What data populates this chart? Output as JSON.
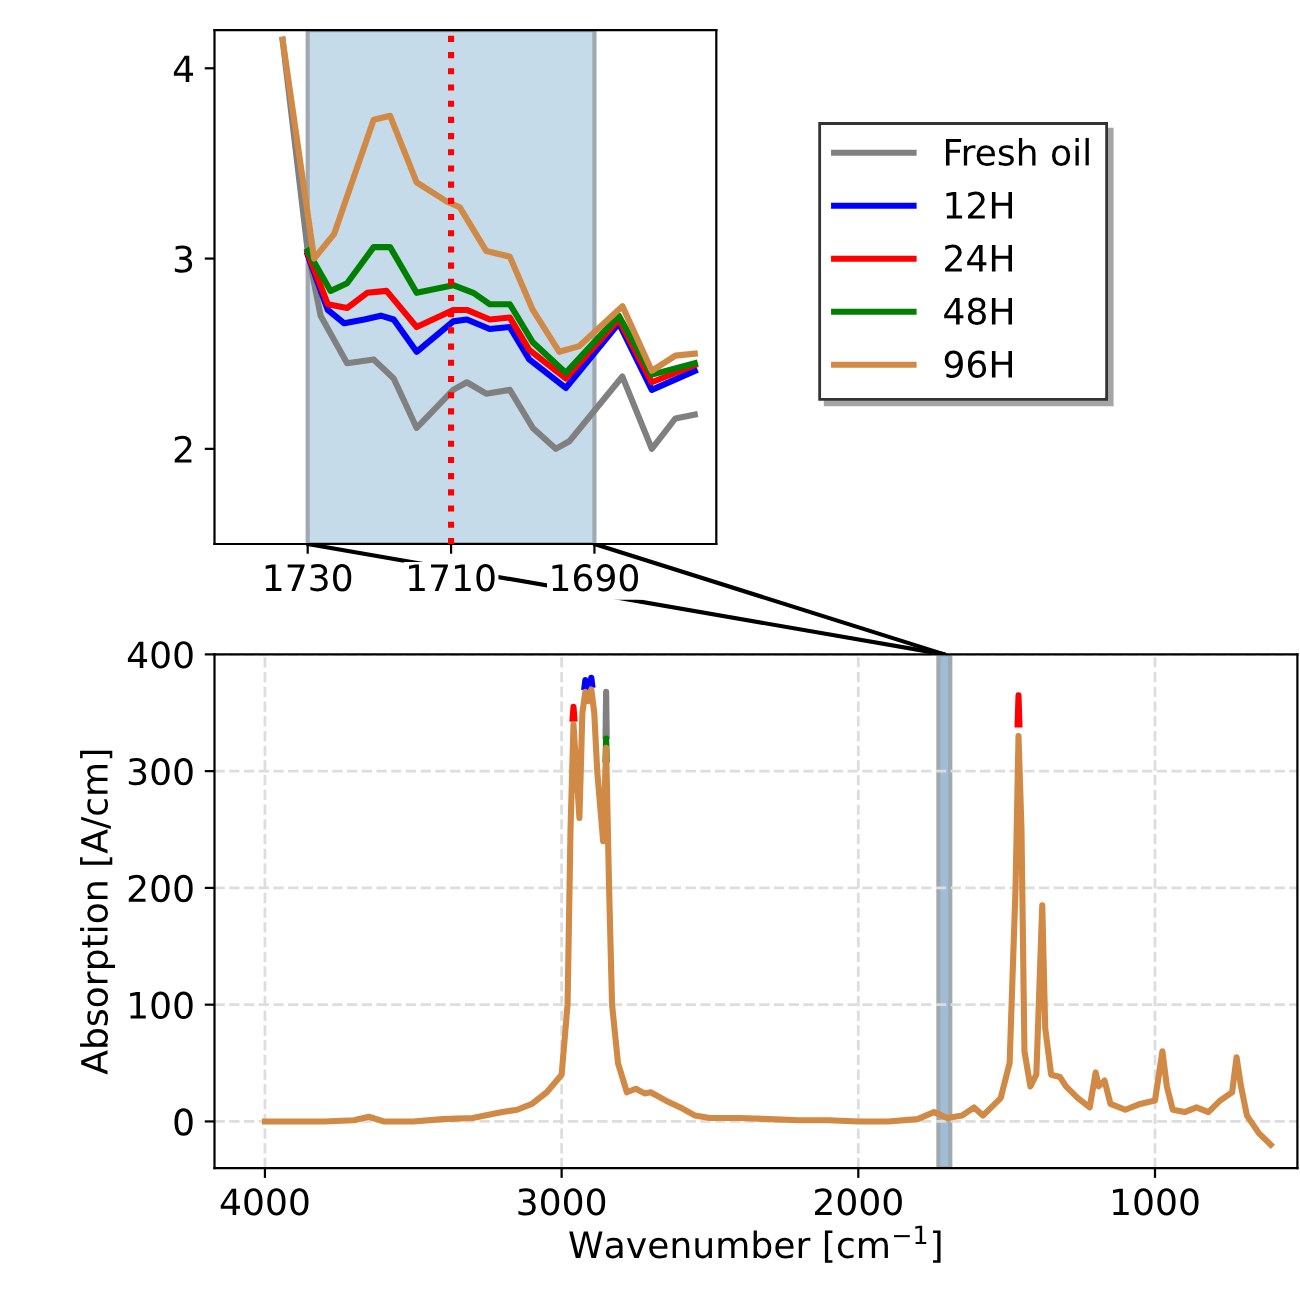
{
  "chart_data": [
    {
      "type": "line",
      "xlim": [
        1743,
        1673
      ],
      "ylim": [
        1.5,
        4.2
      ],
      "xticks": [
        1730,
        1710,
        1690
      ],
      "yticks": [
        2,
        3,
        4
      ],
      "legend": "right",
      "bands": [
        {
          "axis": "x",
          "from": 1730,
          "to": 1690,
          "color": "#c6dbea"
        }
      ],
      "ref_lines": [
        {
          "axis": "x",
          "value": 1710,
          "color": "#ff0000",
          "line_style": "dotted"
        }
      ],
      "series": [
        {
          "name": "Fresh oil",
          "color": "#808080",
          "x": [
            1733.5,
            1730,
            1728.2,
            1724.5,
            1720.8,
            1718,
            1714.8,
            1709.7,
            1707.8,
            1705.1,
            1701.8,
            1698.6,
            1695.4,
            1693.5,
            1686.1,
            1682,
            1678.7,
            1676
          ],
          "values": [
            4.15,
            3.04,
            2.7,
            2.45,
            2.47,
            2.37,
            2.11,
            2.31,
            2.35,
            2.29,
            2.31,
            2.11,
            2.0,
            2.04,
            2.38,
            2.0,
            2.16,
            2.18
          ]
        },
        {
          "name": "12H",
          "color": "#0000ff",
          "x": [
            1730,
            1727.2,
            1724.9,
            1722.1,
            1719.8,
            1718,
            1714.8,
            1709.7,
            1707.8,
            1704.6,
            1701.8,
            1699.1,
            1694,
            1686.6,
            1682,
            1676
          ],
          "values": [
            3.02,
            2.73,
            2.66,
            2.68,
            2.7,
            2.68,
            2.51,
            2.67,
            2.68,
            2.63,
            2.64,
            2.47,
            2.32,
            2.66,
            2.31,
            2.41
          ]
        },
        {
          "name": "24H",
          "color": "#ff0000",
          "x": [
            1730,
            1727.2,
            1724.5,
            1721.7,
            1719,
            1714.8,
            1709.7,
            1707.8,
            1704.6,
            1701.8,
            1699.1,
            1694,
            1686.6,
            1682,
            1676
          ],
          "values": [
            3.03,
            2.76,
            2.74,
            2.82,
            2.83,
            2.64,
            2.73,
            2.73,
            2.68,
            2.69,
            2.52,
            2.37,
            2.68,
            2.35,
            2.44
          ]
        },
        {
          "name": "48H",
          "color": "#008000",
          "x": [
            1730,
            1726.8,
            1724.5,
            1720.8,
            1718.5,
            1714.8,
            1709.7,
            1706.9,
            1704.6,
            1701.8,
            1698.6,
            1694,
            1686.6,
            1682,
            1676
          ],
          "values": [
            3.04,
            2.83,
            2.87,
            3.06,
            3.06,
            2.82,
            2.86,
            2.82,
            2.76,
            2.76,
            2.56,
            2.4,
            2.7,
            2.39,
            2.45
          ]
        },
        {
          "name": "96H",
          "color": "#d08a45",
          "x": [
            1733.5,
            1729.1,
            1726.3,
            1720.8,
            1718.5,
            1714.8,
            1710.6,
            1708.8,
            1705.1,
            1701.8,
            1698.6,
            1694.9,
            1692.1,
            1686.1,
            1682,
            1678.7,
            1676
          ],
          "values": [
            4.15,
            3.0,
            3.13,
            3.73,
            3.75,
            3.4,
            3.3,
            3.27,
            3.04,
            3.01,
            2.73,
            2.51,
            2.54,
            2.75,
            2.41,
            2.49,
            2.5
          ]
        }
      ]
    },
    {
      "type": "line",
      "xlabel": "Wavenumber [cm$^{−1}$]",
      "ylabel": "Absorption [A/cm]",
      "xlim": [
        4170,
        520
      ],
      "ylim": [
        -40,
        400
      ],
      "xticks": [
        4000,
        3000,
        2000,
        1000
      ],
      "yticks": [
        0,
        100,
        200,
        300,
        400
      ],
      "grid": true,
      "bands": [
        {
          "axis": "x",
          "from": 1730,
          "to": 1690,
          "color": "#9fbdd6"
        }
      ],
      "x": [
        4000,
        3900,
        3800,
        3700,
        3650,
        3600,
        3500,
        3400,
        3300,
        3200,
        3150,
        3100,
        3050,
        3000,
        2980,
        2970,
        2960,
        2950,
        2940,
        2930,
        2920,
        2910,
        2900,
        2890,
        2880,
        2870,
        2860,
        2850,
        2840,
        2830,
        2810,
        2780,
        2750,
        2720,
        2700,
        2650,
        2600,
        2550,
        2500,
        2400,
        2300,
        2200,
        2100,
        2000,
        1900,
        1800,
        1745,
        1700,
        1650,
        1610,
        1580,
        1520,
        1490,
        1470,
        1460,
        1450,
        1440,
        1420,
        1400,
        1380,
        1370,
        1350,
        1320,
        1300,
        1260,
        1220,
        1200,
        1190,
        1170,
        1150,
        1100,
        1050,
        1000,
        975,
        960,
        940,
        900,
        860,
        820,
        780,
        740,
        725,
        710,
        690,
        650,
        610
      ],
      "series": [
        {
          "color": "#808080",
          "x": [
            2852,
            2850,
            2848
          ],
          "values": [
            330,
            368,
            330
          ]
        },
        {
          "color": "#0000ff",
          "x": [
            2923,
            2920,
            2917,
            2910,
            2903,
            2900,
            2897
          ],
          "values": [
            372,
            378,
            372,
            null,
            374,
            380,
            374
          ]
        },
        {
          "color": "#ff0000",
          "x": [
            2963,
            2960,
            2957,
            2000,
            1463,
            1460,
            1457
          ],
          "values": [
            345,
            355,
            345,
            null,
            340,
            365,
            340
          ]
        },
        {
          "color": "#008000",
          "x": [
            2852,
            2850,
            2848
          ],
          "values": [
            310,
            328,
            310
          ]
        },
        {
          "color": "#d08a45",
          "values": [
            0,
            0,
            0,
            1,
            4,
            0,
            0,
            2,
            3,
            8,
            10,
            15,
            25,
            40,
            100,
            250,
            340,
            300,
            260,
            350,
            368,
            360,
            370,
            350,
            300,
            270,
            240,
            320,
            200,
            100,
            50,
            25,
            28,
            24,
            25,
            18,
            12,
            5,
            3,
            3,
            2,
            1,
            1,
            0,
            0,
            2,
            8,
            3,
            5,
            12,
            5,
            20,
            50,
            200,
            330,
            250,
            60,
            30,
            40,
            185,
            80,
            40,
            38,
            30,
            20,
            12,
            42,
            30,
            35,
            15,
            10,
            15,
            18,
            60,
            30,
            10,
            8,
            12,
            8,
            18,
            25,
            55,
            30,
            5,
            -10,
            -20
          ]
        }
      ]
    }
  ]
}
